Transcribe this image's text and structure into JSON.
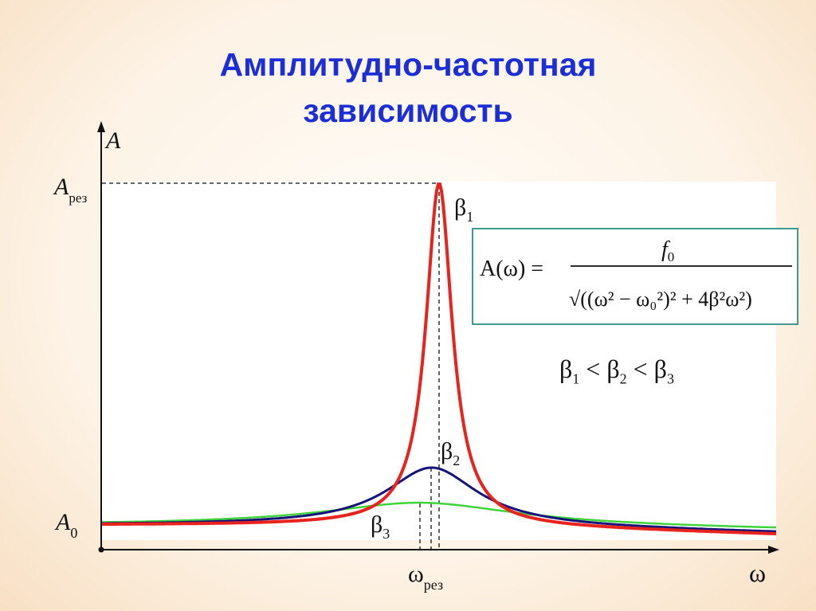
{
  "title": {
    "line1": "Амплитудно-частотная",
    "line2": "зависимость"
  },
  "axes": {
    "y_label": "A",
    "x_label": "ω",
    "a_res": "A",
    "a_res_sub": "рез",
    "a0": "A",
    "a0_sub": "0",
    "omega_res": "ω",
    "omega_res_sub": "рез"
  },
  "formula": {
    "lhs": "A(ω) =",
    "numerator": "f",
    "numerator_sub": "0",
    "denominator": "√((ω² − ω₀²)² + 4β²ω²)"
  },
  "inequality": {
    "b": "β",
    "s1": "1",
    "s2": "2",
    "s3": "3",
    "lt": "<"
  },
  "curves": [
    {
      "label": "β",
      "sub": "1",
      "color": "#e8221c"
    },
    {
      "label": "β",
      "sub": "2",
      "color": "#15137a"
    },
    {
      "label": "β",
      "sub": "3",
      "color": "#3fd43a"
    }
  ],
  "colors": {
    "title": "#1c2ed8",
    "axis": "#111111",
    "box_border": "#3c9a91"
  }
}
